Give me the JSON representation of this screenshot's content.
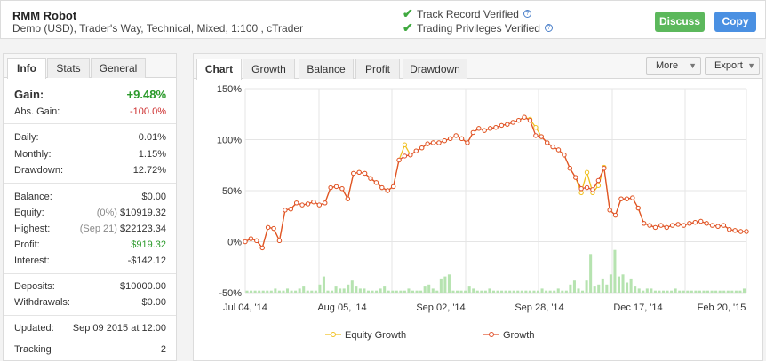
{
  "header": {
    "system_name": "RMM Robot",
    "system_desc": "Demo (USD), Trader's Way, Technical, Mixed, 1:100 , cTrader",
    "verify": [
      {
        "label": "Track Record Verified",
        "icon": "check-icon"
      },
      {
        "label": "Trading Privileges Verified",
        "icon": "check-icon"
      }
    ],
    "discuss_label": "Discuss",
    "copy_label": "Copy"
  },
  "info_tabs": [
    "Info",
    "Stats",
    "General"
  ],
  "info": {
    "gain_label": "Gain:",
    "gain_value": "+9.48%",
    "abs_gain_label": "Abs. Gain:",
    "abs_gain_value": "-100.0%",
    "daily_label": "Daily:",
    "daily_value": "0.01%",
    "monthly_label": "Monthly:",
    "monthly_value": "1.15%",
    "drawdown_label": "Drawdown:",
    "drawdown_value": "12.72%",
    "balance_label": "Balance:",
    "balance_value": "$0.00",
    "equity_label": "Equity:",
    "equity_pct": "(0%)",
    "equity_value": "$10919.32",
    "highest_label": "Highest:",
    "highest_date": "(Sep 21)",
    "highest_value": "$22123.34",
    "profit_label": "Profit:",
    "profit_value": "$919.32",
    "interest_label": "Interest:",
    "interest_value": "-$142.12",
    "deposits_label": "Deposits:",
    "deposits_value": "$10000.00",
    "withdrawals_label": "Withdrawals:",
    "withdrawals_value": "$0.00",
    "updated_label": "Updated:",
    "updated_value": "Sep 09 2015 at 12:00",
    "tracking_label": "Tracking",
    "tracking_value": "2"
  },
  "chart_tabs": [
    "Chart",
    "Growth",
    "Balance",
    "Profit",
    "Drawdown"
  ],
  "more_label": "More",
  "export_label": "Export",
  "colors": {
    "growth": "#e0502b",
    "equity": "#f0c020",
    "bars": "#b6e3b0",
    "grid": "#e5e5e5"
  },
  "chart_data": {
    "type": "line",
    "ylim": [
      -50,
      150
    ],
    "y_ticks": [
      "150%",
      "100%",
      "50%",
      "0%",
      "-50%"
    ],
    "x_tick_labels": [
      "Jul 04, '14",
      "Aug 05, '14",
      "Sep 02, '14",
      "Sep 28, '14",
      "Dec 17, '14",
      "Feb 20, '15"
    ],
    "series": [
      {
        "name": "Equity Growth",
        "values": [
          0,
          3,
          1,
          -6,
          14,
          13,
          1,
          31,
          32,
          38,
          36,
          37,
          39,
          36,
          38,
          53,
          54,
          52,
          42,
          67,
          68,
          67,
          62,
          58,
          53,
          50,
          54,
          80,
          95,
          85,
          89,
          92,
          96,
          97,
          97,
          99,
          101,
          104,
          101,
          97,
          107,
          111,
          109,
          111,
          112,
          114,
          115,
          117,
          119,
          122,
          120,
          112,
          103,
          97,
          93,
          90,
          85,
          72,
          63,
          48,
          68,
          48,
          55,
          73,
          31,
          26,
          42,
          42,
          43,
          33,
          18,
          16,
          14,
          16,
          14,
          16,
          17,
          16,
          18,
          19,
          20,
          18,
          16,
          15,
          16,
          12,
          11,
          10,
          10
        ]
      },
      {
        "name": "Growth",
        "values": [
          0,
          3,
          1,
          -6,
          14,
          13,
          1,
          31,
          32,
          38,
          36,
          37,
          39,
          36,
          38,
          53,
          54,
          52,
          42,
          67,
          68,
          67,
          62,
          58,
          53,
          50,
          54,
          80,
          84,
          85,
          89,
          92,
          96,
          97,
          97,
          99,
          101,
          104,
          101,
          97,
          107,
          111,
          109,
          111,
          112,
          114,
          115,
          117,
          119,
          122,
          119,
          104,
          103,
          97,
          93,
          90,
          85,
          72,
          63,
          52,
          53,
          51,
          60,
          72,
          31,
          26,
          42,
          42,
          43,
          33,
          18,
          16,
          14,
          16,
          14,
          16,
          17,
          16,
          18,
          19,
          20,
          18,
          16,
          15,
          16,
          12,
          11,
          10,
          10
        ]
      }
    ],
    "bar_heights_pct_of_axis": [
      1,
      1,
      1,
      1,
      1,
      1,
      1,
      2,
      1,
      1,
      2,
      1,
      1,
      2,
      3,
      1,
      1,
      1,
      4,
      8,
      1,
      1,
      3,
      2,
      2,
      4,
      6,
      3,
      2,
      2,
      1,
      1,
      1,
      2,
      3,
      1,
      1,
      1,
      1,
      1,
      2,
      1,
      1,
      1,
      3,
      4,
      2,
      1,
      7,
      8,
      9,
      1,
      1,
      1,
      1,
      3,
      2,
      1,
      1,
      1,
      2,
      1,
      1,
      1,
      1,
      1,
      1,
      1,
      1,
      1,
      1,
      1,
      1,
      2,
      1,
      1,
      1,
      2,
      1,
      1,
      4,
      6,
      2,
      1,
      6,
      19,
      3,
      4,
      7,
      4,
      9,
      21,
      8,
      9,
      5,
      7,
      3,
      2,
      1,
      2,
      2,
      1,
      1,
      1,
      1,
      1,
      2,
      1,
      1,
      1,
      1,
      1,
      1,
      1,
      1,
      1,
      1,
      1,
      1,
      1,
      1,
      1,
      1,
      2
    ],
    "legend_position": "bottom"
  }
}
